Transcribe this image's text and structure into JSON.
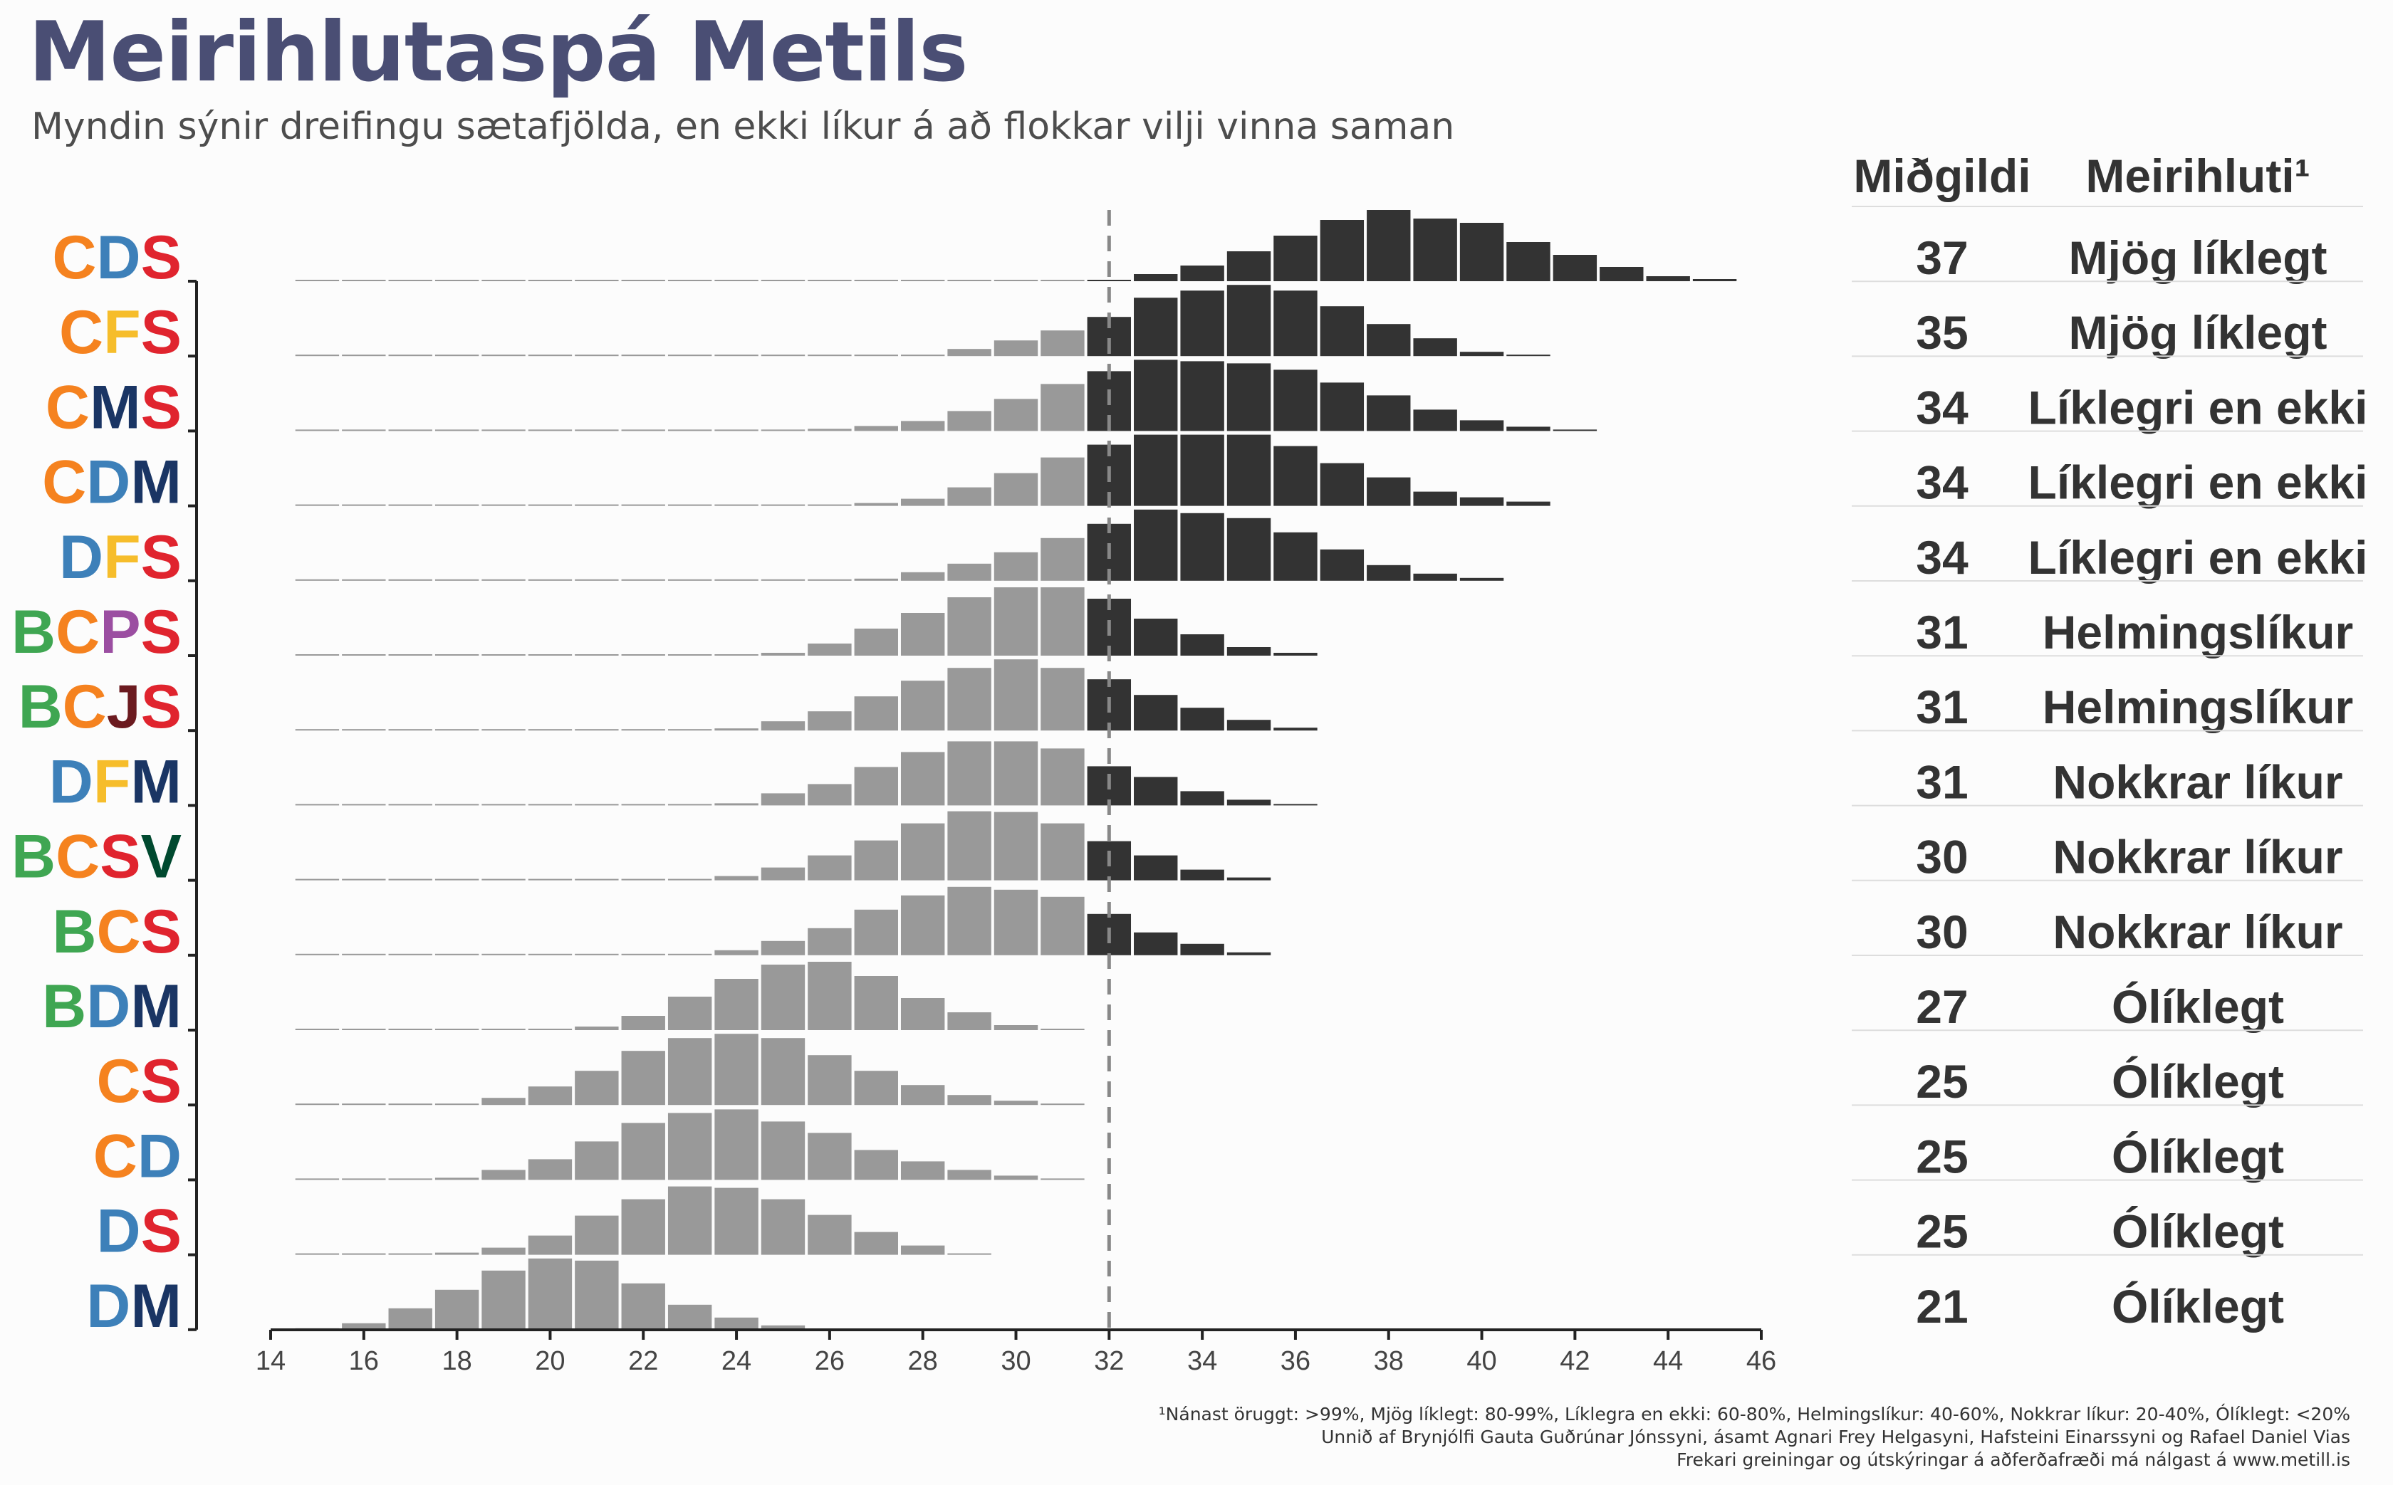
{
  "title": "Meirihlutaspá Metils",
  "subtitle": "Myndin sýnir dreifingu sætafjölda, en ekki líkur á að flokkar vilji vinna saman",
  "table_headers": {
    "median": "Miðgildi",
    "majority": "Meirihluti¹"
  },
  "captions": [
    "¹Nánast öruggt: >99%, Mjög líklegt: 80-99%, Líklegra en ekki: 60-80%, Helmingslíkur: 40-60%, Nokkrar líkur: 20-40%, Ólíklegt: <20%",
    "Unnið af Brynjólfi Gauta Guðrúnar Jónssyni, ásamt Agnari Frey Helgasyni, Hafsteini Einarssyni og Rafael Daniel Vias",
    "Frekari greiningar og útskýringar á aðferðafræði má nálgast á www.metill.is"
  ],
  "party_colors": {
    "B": "#3fa652",
    "C": "#f5821f",
    "D": "#3d80b9",
    "F": "#f6bd2b",
    "J": "#6b1a1f",
    "M": "#1a3564",
    "P": "#9b4ea1",
    "S": "#e0242e",
    "V": "#00492f"
  },
  "bar_colors": {
    "majority": "#333333",
    "minority": "#999999"
  },
  "chart_data": {
    "type": "histogram",
    "xlim": [
      14,
      46
    ],
    "xticks": [
      14,
      16,
      18,
      20,
      22,
      24,
      26,
      28,
      30,
      32,
      34,
      36,
      38,
      40,
      42,
      44,
      46
    ],
    "majority_line": 32,
    "bin_start": 15,
    "series": [
      {
        "name": "CDS",
        "median": 37,
        "majority": "Mjög líklegt",
        "values": [
          0,
          0,
          0,
          0,
          0,
          0,
          0,
          0,
          0,
          0,
          0,
          0,
          0,
          0,
          0,
          0,
          0,
          0.02,
          0.1,
          0.22,
          0.42,
          0.64,
          0.86,
          1.0,
          0.88,
          0.82,
          0.55,
          0.37,
          0.2,
          0.07,
          0.03
        ]
      },
      {
        "name": "CFS",
        "median": 35,
        "majority": "Mjög líklegt",
        "values": [
          0,
          0,
          0,
          0,
          0,
          0,
          0,
          0,
          0,
          0,
          0,
          0,
          0,
          0.02,
          0.1,
          0.22,
          0.36,
          0.55,
          0.82,
          0.92,
          1.0,
          0.92,
          0.7,
          0.45,
          0.25,
          0.06,
          0.02
        ]
      },
      {
        "name": "CMS",
        "median": 34,
        "majority": "Líklegri en ekki",
        "values": [
          0,
          0,
          0,
          0,
          0,
          0,
          0,
          0,
          0,
          0,
          0,
          0.03,
          0.07,
          0.14,
          0.28,
          0.45,
          0.66,
          0.84,
          1.0,
          0.98,
          0.95,
          0.86,
          0.68,
          0.5,
          0.3,
          0.15,
          0.06,
          0.02
        ]
      },
      {
        "name": "CDM",
        "median": 34,
        "majority": "Líklegri en ekki",
        "values": [
          0,
          0,
          0,
          0,
          0,
          0,
          0,
          0,
          0,
          0,
          0,
          0,
          0.04,
          0.1,
          0.26,
          0.46,
          0.68,
          0.86,
          1.0,
          1.0,
          1.0,
          0.84,
          0.6,
          0.4,
          0.2,
          0.12,
          0.06
        ]
      },
      {
        "name": "DFS",
        "median": 34,
        "majority": "Líklegri en ekki",
        "values": [
          0,
          0,
          0,
          0,
          0,
          0,
          0,
          0,
          0,
          0,
          0,
          0,
          0.03,
          0.12,
          0.24,
          0.4,
          0.6,
          0.8,
          1.0,
          0.95,
          0.88,
          0.68,
          0.44,
          0.22,
          0.1,
          0.04
        ]
      },
      {
        "name": "BCPS",
        "median": 31,
        "majority": "Helmingslíkur",
        "values": [
          0,
          0,
          0,
          0,
          0,
          0,
          0,
          0,
          0,
          0,
          0.04,
          0.17,
          0.38,
          0.6,
          0.82,
          0.96,
          0.96,
          0.8,
          0.52,
          0.3,
          0.12,
          0.04
        ]
      },
      {
        "name": "BCJS",
        "median": 31,
        "majority": "Helmingslíkur",
        "values": [
          0,
          0,
          0,
          0,
          0,
          0,
          0,
          0,
          0,
          0.03,
          0.13,
          0.27,
          0.48,
          0.7,
          0.88,
          1.0,
          0.88,
          0.72,
          0.5,
          0.32,
          0.15,
          0.04
        ]
      },
      {
        "name": "DFM",
        "median": 31,
        "majority": "Nokkrar líkur",
        "values": [
          0,
          0,
          0,
          0,
          0,
          0,
          0,
          0,
          0,
          0.03,
          0.17,
          0.3,
          0.54,
          0.75,
          0.9,
          0.9,
          0.8,
          0.55,
          0.4,
          0.2,
          0.08,
          0.02
        ]
      },
      {
        "name": "BCSV",
        "median": 30,
        "majority": "Nokkrar líkur",
        "values": [
          0,
          0,
          0,
          0,
          0,
          0,
          0,
          0,
          0.02,
          0.06,
          0.18,
          0.35,
          0.56,
          0.8,
          0.97,
          0.96,
          0.8,
          0.55,
          0.35,
          0.15,
          0.04
        ]
      },
      {
        "name": "BCS",
        "median": 30,
        "majority": "Nokkrar líkur",
        "values": [
          0,
          0,
          0,
          0,
          0,
          0,
          0,
          0,
          0.02,
          0.07,
          0.2,
          0.38,
          0.64,
          0.84,
          0.96,
          0.92,
          0.82,
          0.58,
          0.32,
          0.16,
          0.04
        ]
      },
      {
        "name": "BDM",
        "median": 27,
        "majority": "Ólíklegt",
        "values": [
          0,
          0,
          0,
          0,
          0,
          0,
          0.05,
          0.2,
          0.47,
          0.72,
          0.92,
          0.96,
          0.76,
          0.45,
          0.25,
          0.07,
          0.02
        ]
      },
      {
        "name": "CS",
        "median": 25,
        "majority": "Ólíklegt",
        "values": [
          0,
          0,
          0,
          0.02,
          0.1,
          0.26,
          0.48,
          0.76,
          0.94,
          1.0,
          0.94,
          0.7,
          0.48,
          0.28,
          0.14,
          0.06,
          0.02
        ]
      },
      {
        "name": "CD",
        "median": 25,
        "majority": "Ólíklegt",
        "values": [
          0,
          0,
          0,
          0.03,
          0.14,
          0.29,
          0.54,
          0.8,
          0.94,
          0.99,
          0.82,
          0.66,
          0.42,
          0.26,
          0.14,
          0.06,
          0.02
        ]
      },
      {
        "name": "DS",
        "median": 25,
        "majority": "Ólíklegt",
        "values": [
          0,
          0,
          0,
          0.03,
          0.1,
          0.27,
          0.55,
          0.78,
          0.96,
          0.94,
          0.78,
          0.56,
          0.32,
          0.13,
          0.02
        ]
      },
      {
        "name": "DM",
        "median": 21,
        "majority": "Ólíklegt",
        "values": [
          0.01,
          0.09,
          0.3,
          0.56,
          0.83,
          1.0,
          0.97,
          0.65,
          0.35,
          0.17,
          0.06
        ]
      }
    ]
  }
}
